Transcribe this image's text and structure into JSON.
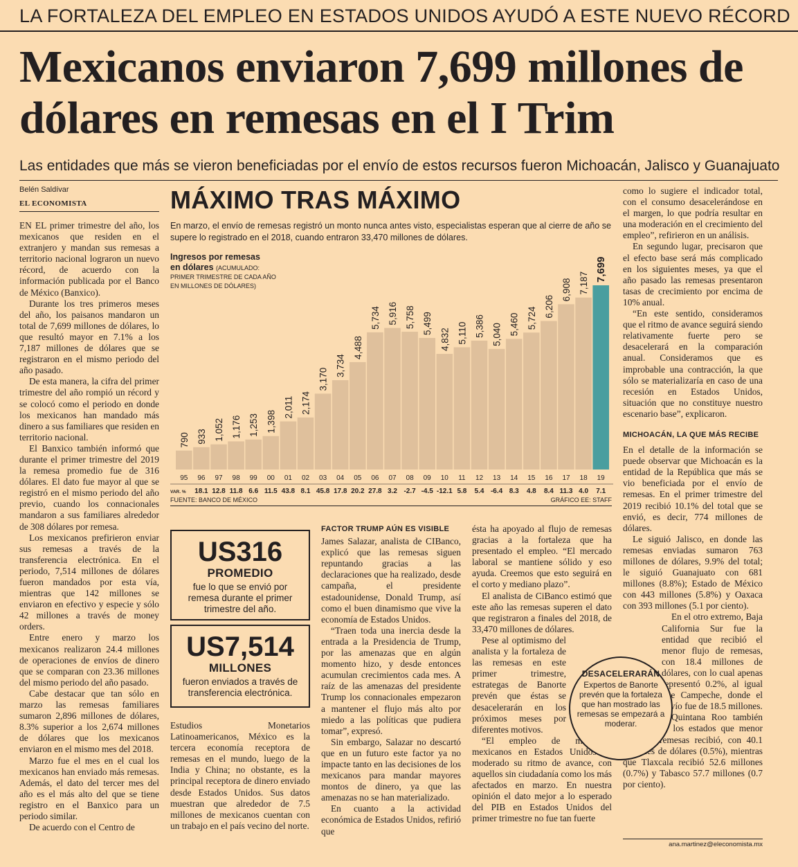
{
  "kicker": "LA FORTALEZA DEL EMPLEO EN ESTADOS UNIDOS AYUDÓ A ESTE NUEVO RÉCORD",
  "headline": "Mexicanos enviaron 7,699 millones de dólares en remesas en el I Trim",
  "subheadline": "Las entidades que más se vieron beneficiadas por el envío de estos recursos fueron Michoacán, Jalisco y Guanajuato",
  "byline": {
    "author": "Belén Saldívar",
    "outlet": "EL ECONOMISTA"
  },
  "chart": {
    "title": "MÁXIMO TRAS MÁXIMO",
    "description": "En marzo, el envío de remesas registró un monto nunca antes visto, especialistas esperan que al cierre de año se supere lo registrado en el 2018, cuando entraron 33,470 millones de dólares.",
    "label_line1": "Ingresos por remesas",
    "label_line2": "en dólares",
    "label_note_inline": "(ACUMULADO:",
    "label_note": "PRIMER TRIMESTRE DE CADA AÑO EN MILLONES DE DÓLARES)",
    "var_label": "VAR. %",
    "source": "FUENTE: BANCO DE MÉXICO",
    "credit": "GRÁFICO EE: STAFF",
    "bar_color": "#dfc09c",
    "highlight_color": "#4a9e9f"
  },
  "chart_data": {
    "type": "bar",
    "categories": [
      "95",
      "96",
      "97",
      "98",
      "99",
      "00",
      "01",
      "02",
      "03",
      "04",
      "05",
      "06",
      "07",
      "08",
      "09",
      "10",
      "11",
      "12",
      "13",
      "14",
      "15",
      "16",
      "17",
      "18",
      "19"
    ],
    "values": [
      790,
      933,
      1052,
      1176,
      1253,
      1398,
      2011,
      2174,
      3170,
      3734,
      4488,
      5734,
      5916,
      5758,
      5499,
      4832,
      5110,
      5386,
      5040,
      5460,
      5724,
      6206,
      6908,
      7187,
      7699
    ],
    "value_labels": [
      "790",
      "933",
      "1,052",
      "1,176",
      "1,253",
      "1,398",
      "2,011",
      "2,174",
      "3,170",
      "3,734",
      "4,488",
      "5,734",
      "5,916",
      "5,758",
      "5,499",
      "4,832",
      "5,110",
      "5,386",
      "5,040",
      "5,460",
      "5,724",
      "6,206",
      "6,908",
      "7,187",
      "7,699"
    ],
    "var_pct": [
      "",
      "18.1",
      "12.8",
      "11.8",
      "6.6",
      "11.5",
      "43.8",
      "8.1",
      "45.8",
      "17.8",
      "20.2",
      "27.8",
      "3.2",
      "-2.7",
      "-4.5",
      "-12.1",
      "5.8",
      "5.4",
      "-6.4",
      "8.3",
      "4.8",
      "8.4",
      "11.3",
      "4.0",
      "7.1"
    ],
    "highlight_index": 24,
    "ylim": [
      0,
      8000
    ]
  },
  "box1": {
    "amount": "US316",
    "label": "PROMEDIO",
    "text": "fue lo que se envió por remesa durante el primer trimestre del año."
  },
  "box2": {
    "amount": "US7,514",
    "label": "MILLONES",
    "text": "fueron enviados a través de transferencia electrónica."
  },
  "callout": {
    "title": "DESACELERARÁN",
    "text": "Expertos de Banorte prevén que la fortaleza que han mostrado las remesas se empezará a moderar."
  },
  "col1": [
    "EN EL primer trimestre del año, los mexicanos que residen en el extranjero y mandan sus remesas a territorio nacional lograron un nuevo récord, de acuerdo con la información publicada por el Banco de México (Banxico).",
    "Durante los tres primeros meses del año, los paisanos mandaron un total de 7,699 millones de dólares, lo que resultó mayor en 7.1% a los 7,187 millones de dólares que se registraron en el mismo periodo del año pasado.",
    "De esta manera, la cifra del primer trimestre del año rompió un récord y se colocó como el periodo en donde los mexicanos han mandado más dinero a sus familiares que residen en territorio nacional.",
    "El Banxico también informó que durante el primer trimestre del 2019 la remesa promedio fue de 316 dólares. El dato fue mayor al que se registró en el mismo periodo del año previo, cuando los connacionales mandaron a sus familiares alrededor de 308 dólares por remesa.",
    "Los mexicanos prefirieron enviar sus remesas a través de la transferencia electrónica. En el periodo, 7,514 millones de dólares fueron mandados por esta vía, mientras que 142 millones se enviaron en efectivo y especie y sólo 42 millones a través de money orders.",
    "Entre enero y marzo los mexicanos realizaron 24.4 millones de operaciones de envíos de dinero que se comparan con 23.36 millones del mismo periodo del año pasado.",
    "Cabe destacar que tan sólo en marzo las remesas familiares sumaron 2,896 millones de dólares, 8.3% superior a los 2,674 millones de dólares que los mexicanos enviaron en el mismo mes del 2018.",
    "Marzo fue el mes en el cual los mexicanos han enviado más remesas. Además, el dato del tercer mes del año es el más alto del que se tiene registro en el Banxico para un periodo similar.",
    "De acuerdo con el Centro de"
  ],
  "col2": [
    "Estudios Monetarios Latinoamericanos, México es la tercera economía receptora de remesas en el mundo, luego de la India y China; no obstante, es la principal receptora de dinero enviado desde Estados Unidos. Sus datos muestran que alrededor de 7.5 millones de mexicanos cuentan con un trabajo en el país vecino del norte."
  ],
  "col3_heading": "FACTOR TRUMP AÚN ES VISIBLE",
  "col3": [
    "James Salazar, analista de CIBanco, explicó que las remesas siguen repuntando gracias a las declaraciones que ha realizado, desde campaña, el presidente estadounidense, Donald Trump, así como el buen dinamismo que vive la economía de Estados Unidos.",
    "“Traen toda una inercia desde la entrada a la Presidencia de Trump, por las amenazas que en algún momento hizo, y desde entonces acumulan crecimientos cada mes. A raíz de las amenazas del presidente Trump los connacionales empezaron a mantener el flujo más alto por miedo a las políticas que pudiera tomar”, expresó.",
    "Sin embargo, Salazar no descartó que en un futuro este factor ya no impacte tanto en las decisiones de los mexicanos para mandar mayores montos de dinero, ya que las amenazas no se han materializado.",
    "En cuanto a la actividad económica de Estados Unidos, refirió que"
  ],
  "col4": [
    "ésta ha apoyado al flujo de remesas gracias a la fortaleza que ha presentado el empleo. “El mercado laboral se mantiene sólido y eso ayuda. Creemos que esto seguirá en el corto y mediano plazo”.",
    "El analista de CiBanco estimó que este año las remesas superen el dato que registraron a finales del 2018, de 33,470 millones de dólares.",
    "Pese al optimismo del analista y la fortaleza de las remesas en este primer trimestre, estrategas de Banorte prevén que éstas se desacelerarán en los próximos meses por diferentes motivos.",
    "“El empleo de migrantes mexicanos en Estados Unidos ha moderado su ritmo de avance, con aquellos sin ciudadanía como los más afectados en marzo. En nuestra opinión el dato mejor a lo esperado del PIB en Estados Unidos del primer trimestre no fue tan fuerte"
  ],
  "col5": [
    "como lo sugiere el indicador total, con el consumo desacelerándose en el margen, lo que podría resultar en una moderación en el crecimiento del empleo”, refirieron en un análisis.",
    "En segundo lugar, precisaron que el efecto base será más complicado en los siguientes meses, ya que el año pasado las remesas presentaron tasas de crecimiento por encima de 10% anual.",
    "“En este sentido, consideramos que el ritmo de avance seguirá siendo relativamente fuerte pero se desacelerará en la comparación anual. Consideramos que es improbable una contracción, la que sólo se materializaría en caso de una recesión en Estados Unidos, situación que no constituye nuestro escenario base”, explicaron."
  ],
  "col5_heading": "MICHOACÁN, LA QUE MÁS RECIBE",
  "col5b": [
    "En el detalle de la información se puede observar que Michoacán es la entidad de la República que más se vio beneficiada por el envío de remesas. En el primer trimestre del 2019 recibió 10.1% del total que se envió, es decir, 774 millones de dólares.",
    "Le siguió Jalisco, en donde las remesas enviadas sumaron 763 millones de dólares, 9.9% del total; le siguió Guanajuato con 681 millones (8.8%); Estado de México con 443 millones (5.8%) y Oaxaca con 393 millones (5.1 por ciento).",
    "En el otro extremo, Baja California Sur fue la entidad que recibió el menor flujo de remesas, con 18.4 millones de dólares, con lo cual apenas representó 0.2%, al igual que Campeche, donde el envío fue de 18.5 millones.",
    "Quintana Roo también fue otro de los estados que menor flujo de remesas recibió, con 40.1 millones de dólares (0.5%), mientras que Tlaxcala recibió 52.6 millones (0.7%) y Tabasco 57.7 millones (0.7 por ciento)."
  ],
  "email": "ana.martinez@eleconomista.mx"
}
